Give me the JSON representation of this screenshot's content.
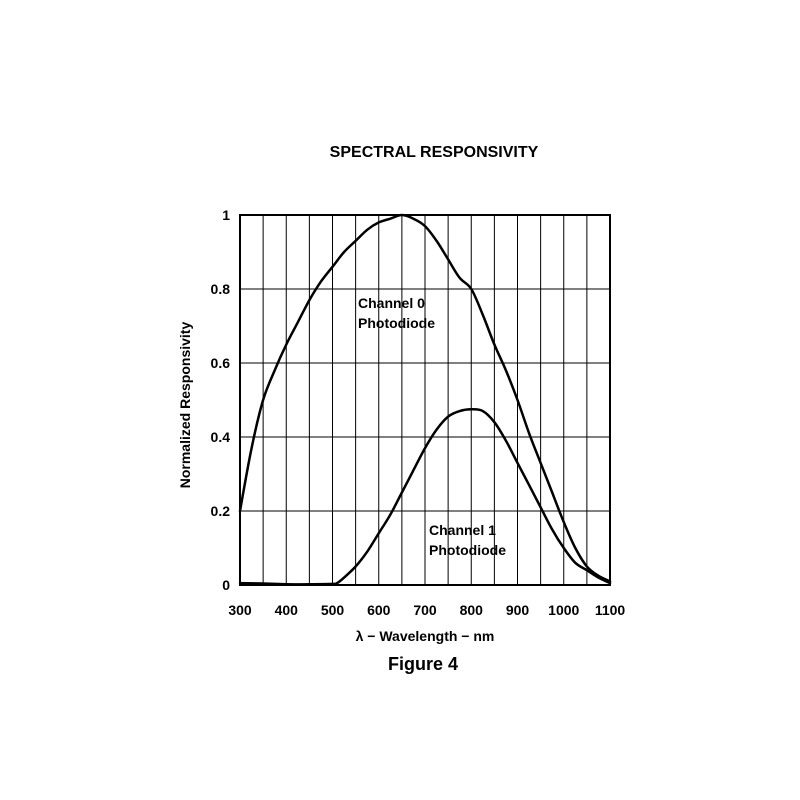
{
  "chart_data": {
    "type": "line",
    "title": "SPECTRAL RESPONSIVITY",
    "xlabel": "λ − Wavelength − nm",
    "ylabel": "Normalized Responsivity",
    "caption": "Figure 4",
    "xlim": [
      300,
      1100
    ],
    "ylim": [
      0,
      1
    ],
    "x_ticks": [
      "300",
      "400",
      "500",
      "600",
      "700",
      "800",
      "900",
      "1000",
      "1100"
    ],
    "y_ticks": [
      "0",
      "0.2",
      "0.4",
      "0.6",
      "0.8",
      "1"
    ],
    "grid": true,
    "series": [
      {
        "name": "Channel 0 Photodiode",
        "label_lines": [
          "Channel 0",
          "Photodiode"
        ],
        "x": [
          300,
          325,
          350,
          375,
          400,
          425,
          450,
          475,
          500,
          525,
          550,
          575,
          600,
          625,
          650,
          675,
          700,
          725,
          750,
          775,
          800,
          825,
          850,
          875,
          900,
          925,
          950,
          975,
          1000,
          1025,
          1050,
          1075,
          1100
        ],
        "y": [
          0.2,
          0.37,
          0.5,
          0.58,
          0.65,
          0.71,
          0.77,
          0.82,
          0.86,
          0.9,
          0.93,
          0.96,
          0.98,
          0.99,
          1.0,
          0.99,
          0.97,
          0.93,
          0.88,
          0.83,
          0.8,
          0.73,
          0.65,
          0.58,
          0.5,
          0.41,
          0.33,
          0.25,
          0.17,
          0.1,
          0.05,
          0.025,
          0.01
        ]
      },
      {
        "name": "Channel 1 Photodiode",
        "label_lines": [
          "Channel 1",
          "Photodiode"
        ],
        "x": [
          300,
          350,
          400,
          450,
          500,
          510,
          525,
          550,
          575,
          600,
          625,
          650,
          675,
          700,
          725,
          750,
          775,
          800,
          825,
          850,
          875,
          900,
          925,
          950,
          975,
          1000,
          1025,
          1050,
          1075,
          1100
        ],
        "y": [
          0.005,
          0.004,
          0.002,
          0.002,
          0.003,
          0.005,
          0.02,
          0.05,
          0.09,
          0.14,
          0.19,
          0.25,
          0.31,
          0.37,
          0.42,
          0.455,
          0.47,
          0.475,
          0.47,
          0.44,
          0.39,
          0.33,
          0.27,
          0.21,
          0.15,
          0.1,
          0.06,
          0.04,
          0.02,
          0.005
        ]
      }
    ]
  }
}
